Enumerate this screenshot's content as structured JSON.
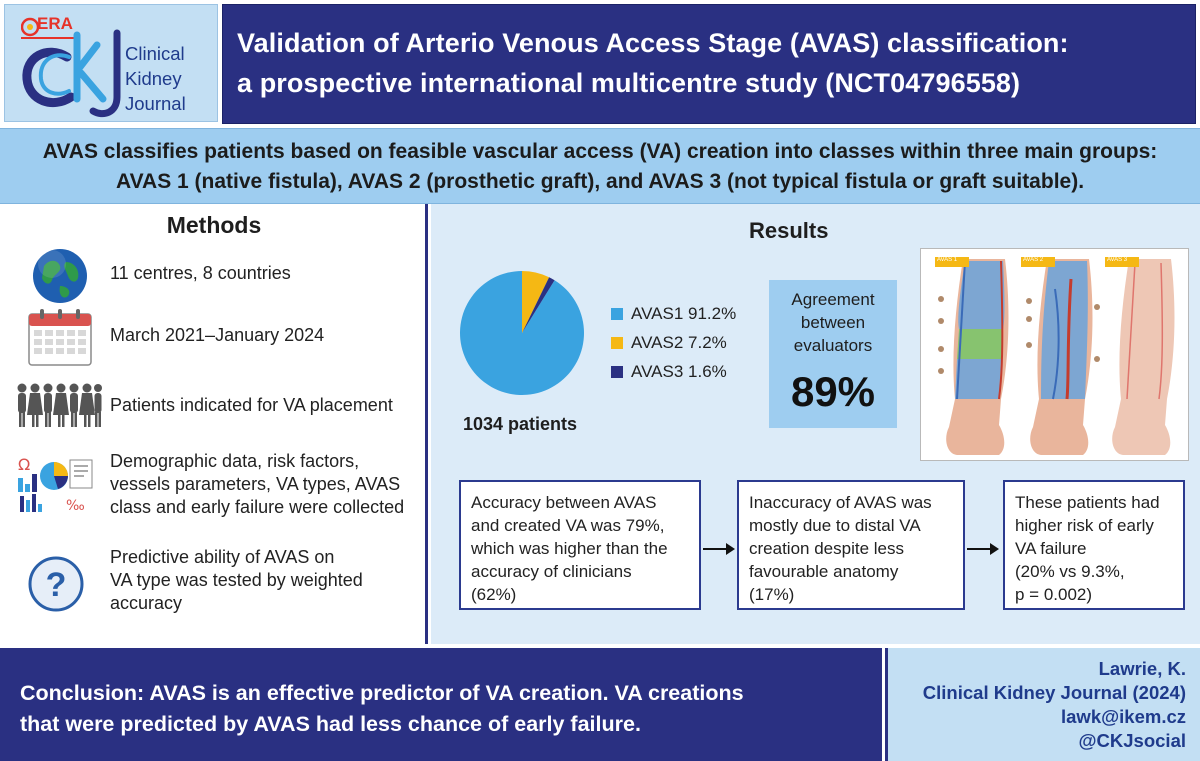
{
  "header": {
    "era_label": "ERA",
    "logo_lines": [
      "Clinical",
      "Kidney",
      "Journal"
    ],
    "title_lines": [
      "Validation of Arterio Venous Access Stage (AVAS) classification:",
      "a prospective international multicentre study (NCT04796558)"
    ],
    "colors": {
      "navy": "#2a3082",
      "light_blue": "#9ecdf0",
      "pale_blue": "#c3dff3"
    }
  },
  "intro": {
    "line1": "AVAS classifies patients based on feasible vascular access (VA) creation into classes within three main groups:",
    "line2": "AVAS 1 (native fistula), AVAS 2 (prosthetic graft), and AVAS 3 (not typical fistula or graft suitable)."
  },
  "methods": {
    "title": "Methods",
    "items": [
      {
        "icon": "globe-icon",
        "lines": [
          "11 centres, 8 countries"
        ]
      },
      {
        "icon": "calendar-icon",
        "lines": [
          "March 2021–January 2024"
        ]
      },
      {
        "icon": "people-icon",
        "lines": [
          "Patients indicated for VA placement"
        ]
      },
      {
        "icon": "data-charts-icon",
        "lines": [
          "Demographic data, risk factors,",
          "vessels parameters, VA types, AVAS",
          "class and early failure were collected"
        ]
      },
      {
        "icon": "question-icon",
        "lines": [
          "Predictive ability of AVAS on",
          "VA type was tested by weighted",
          "accuracy"
        ]
      }
    ]
  },
  "results": {
    "title": "Results",
    "patients": "1034 patients",
    "agreement": {
      "lines": [
        "Agreement",
        "between",
        "evaluators"
      ],
      "value": "89%"
    },
    "arm_labels": [
      "AVAS 1",
      "AVAS 2",
      "AVAS 3"
    ],
    "boxes": [
      {
        "lines": [
          "Accuracy between AVAS",
          "and created VA was 79%,",
          "which was higher than the",
          "accuracy of clinicians",
          "(62%)"
        ]
      },
      {
        "lines": [
          "Inaccuracy of AVAS was",
          "mostly due to distal VA",
          "creation despite less",
          "favourable anatomy",
          "(17%)"
        ]
      },
      {
        "lines": [
          "These patients had",
          "higher risk of early",
          "VA failure",
          "(20% vs 9.3%,",
          "p = 0.002)"
        ]
      }
    ]
  },
  "chart_data": {
    "type": "pie",
    "title": "",
    "categories": [
      "AVAS1",
      "AVAS2",
      "AVAS3"
    ],
    "values": [
      91.2,
      7.2,
      1.6
    ],
    "labels": [
      "AVAS1 91.2%",
      "AVAS2 7.2%",
      "AVAS3 1.6%"
    ],
    "colors": [
      "#3aa3e0",
      "#f5b814",
      "#2a3082"
    ],
    "legend": "right"
  },
  "footer": {
    "conclusion_lines": [
      "Conclusion: AVAS is an effective predictor of VA creation. VA creations",
      "that were predicted by AVAS had less chance of early failure."
    ],
    "citation": [
      "Lawrie, K.",
      "Clinical Kidney Journal (2024)",
      "lawk@ikem.cz",
      "@CKJsocial"
    ]
  }
}
